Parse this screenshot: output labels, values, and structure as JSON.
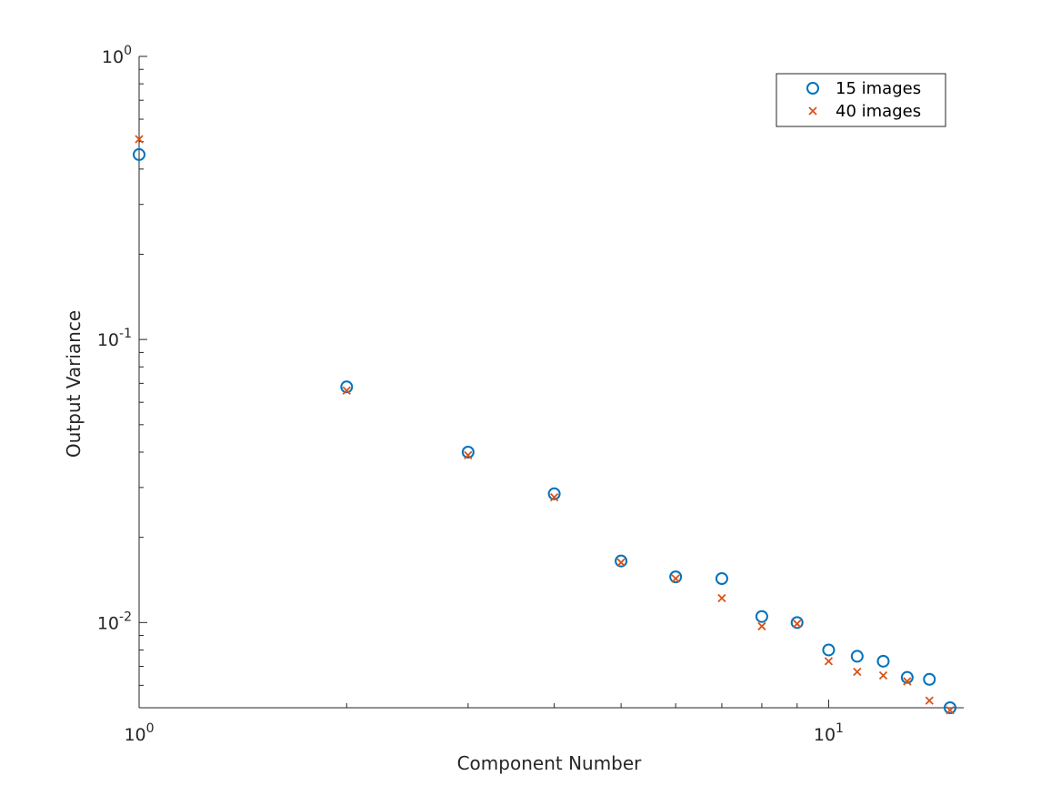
{
  "chart_data": {
    "type": "scatter",
    "title": "",
    "xlabel": "Component Number",
    "ylabel": "Output Variance",
    "xscale": "log",
    "yscale": "log",
    "xlim": [
      1,
      15.7
    ],
    "ylim": [
      0.005,
      1
    ],
    "grid": false,
    "legend_position": "top-right",
    "x_ticks": [
      {
        "value": 1,
        "base": "10",
        "exp": "0"
      },
      {
        "value": 10,
        "base": "10",
        "exp": "1"
      }
    ],
    "y_ticks": [
      {
        "value": 1,
        "base": "10",
        "exp": "0"
      },
      {
        "value": 0.1,
        "base": "10",
        "exp": "-1"
      },
      {
        "value": 0.01,
        "base": "10",
        "exp": "-2"
      }
    ],
    "x": [
      1,
      2,
      3,
      4,
      5,
      6,
      7,
      8,
      9,
      10,
      11,
      12,
      13,
      14,
      15
    ],
    "series": [
      {
        "name": "15 images",
        "marker": "circle",
        "color": "#0072BD",
        "values": [
          0.45,
          0.068,
          0.04,
          0.0285,
          0.0165,
          0.0145,
          0.0143,
          0.0105,
          0.01,
          0.008,
          0.0076,
          0.0073,
          0.0064,
          0.0063,
          0.005
        ]
      },
      {
        "name": "40 images",
        "marker": "x",
        "color": "#D95319",
        "values": [
          0.51,
          0.066,
          0.039,
          0.0277,
          0.0163,
          0.0143,
          0.0122,
          0.0097,
          0.0099,
          0.0073,
          0.0067,
          0.0065,
          0.0062,
          0.0053,
          0.0049
        ]
      }
    ]
  }
}
